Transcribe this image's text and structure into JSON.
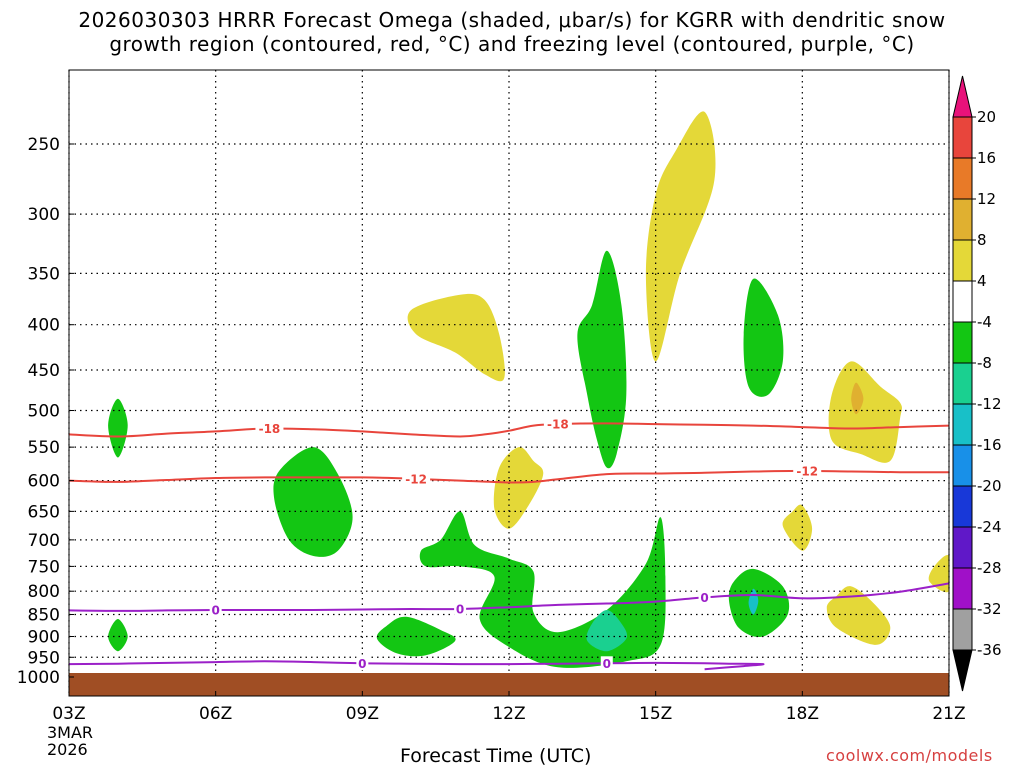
{
  "title_line1": "2026030303 HRRR Forecast Omega (shaded, μbar/s) for KGRR with dendritic snow",
  "title_line2": "growth region (contoured, red, °C) and freezing level (contoured, purple, °C)",
  "xaxis_title": "Forecast Time (UTC)",
  "credit": "coolwx.com/models",
  "date_label": [
    "3MAR",
    "2026"
  ],
  "chart_data": {
    "type": "contour",
    "x_ticks": [
      {
        "hour": 3,
        "label": "03Z"
      },
      {
        "hour": 6,
        "label": "06Z"
      },
      {
        "hour": 9,
        "label": "09Z"
      },
      {
        "hour": 12,
        "label": "12Z"
      },
      {
        "hour": 15,
        "label": "15Z"
      },
      {
        "hour": 18,
        "label": "18Z"
      },
      {
        "hour": 21,
        "label": "21Z"
      }
    ],
    "xlim": [
      3,
      21
    ],
    "ylim_hpa": [
      1040,
      200
    ],
    "y_ticks": [
      {
        "p": 250,
        "label": "250"
      },
      {
        "p": 300,
        "label": "300"
      },
      {
        "p": 350,
        "label": "350"
      },
      {
        "p": 400,
        "label": "400"
      },
      {
        "p": 450,
        "label": "450"
      },
      {
        "p": 500,
        "label": "500"
      },
      {
        "p": 550,
        "label": "550"
      },
      {
        "p": 600,
        "label": "600"
      },
      {
        "p": 650,
        "label": "650"
      },
      {
        "p": 700,
        "label": "700"
      },
      {
        "p": 750,
        "label": "750"
      },
      {
        "p": 800,
        "label": "800"
      },
      {
        "p": 850,
        "label": "850"
      },
      {
        "p": 900,
        "label": "900"
      },
      {
        "p": 950,
        "label": "950"
      },
      {
        "p": 1000,
        "label": "1000"
      }
    ],
    "colorbar": {
      "labels": [
        "20",
        "16",
        "12",
        "8",
        "4",
        "-4",
        "-8",
        "-12",
        "-16",
        "-20",
        "-24",
        "-28",
        "-32",
        "-36"
      ],
      "colors": [
        "#e8127a",
        "#e8453c",
        "#e87a28",
        "#e0b030",
        "#e4d838",
        "#ffffff",
        "#13c613",
        "#1ad090",
        "#18c0c8",
        "#1890e8",
        "#1838d8",
        "#6018c8",
        "#a010c8",
        "#a0a0a0",
        "#000000"
      ]
    },
    "contours": [
      {
        "name": "dendritic-top",
        "value": "-18",
        "color": "#e8453c",
        "points": [
          [
            3,
            532
          ],
          [
            4,
            535
          ],
          [
            5,
            531
          ],
          [
            6,
            528
          ],
          [
            7,
            524
          ],
          [
            8,
            525
          ],
          [
            9,
            528
          ],
          [
            10,
            532
          ],
          [
            11,
            535
          ],
          [
            11.5,
            532
          ],
          [
            12,
            527
          ],
          [
            12.5,
            520
          ],
          [
            13,
            518
          ],
          [
            14,
            517
          ],
          [
            15,
            518
          ],
          [
            16,
            519
          ],
          [
            17,
            520
          ],
          [
            18,
            522
          ],
          [
            19,
            524
          ],
          [
            20,
            522
          ],
          [
            21,
            520
          ]
        ],
        "labels": [
          {
            "hour": 7.1,
            "value": "-18"
          },
          {
            "hour": 13.0,
            "value": "-18"
          }
        ]
      },
      {
        "name": "dendritic-bottom",
        "value": "-12",
        "color": "#e8453c",
        "points": [
          [
            3,
            600
          ],
          [
            4,
            602
          ],
          [
            5,
            599
          ],
          [
            6,
            596
          ],
          [
            7,
            595
          ],
          [
            8,
            595
          ],
          [
            9,
            595
          ],
          [
            10,
            597
          ],
          [
            11,
            600
          ],
          [
            12,
            603
          ],
          [
            12.5,
            602
          ],
          [
            13,
            598
          ],
          [
            14,
            590
          ],
          [
            15,
            589
          ],
          [
            16,
            588
          ],
          [
            17,
            586
          ],
          [
            18,
            585
          ],
          [
            19,
            586
          ],
          [
            20,
            587
          ],
          [
            21,
            587
          ]
        ],
        "labels": [
          {
            "hour": 10.1,
            "value": "-12"
          },
          {
            "hour": 18.1,
            "value": "-12"
          }
        ]
      },
      {
        "name": "freezing-level-upper",
        "value": "0",
        "color": "#9b20c8",
        "points": [
          [
            3,
            841
          ],
          [
            4,
            842
          ],
          [
            5,
            841
          ],
          [
            6,
            840
          ],
          [
            7,
            840
          ],
          [
            8,
            840
          ],
          [
            9,
            839
          ],
          [
            10,
            838
          ],
          [
            11,
            838
          ],
          [
            12,
            834
          ],
          [
            13,
            829
          ],
          [
            14,
            826
          ],
          [
            15,
            822
          ],
          [
            16,
            813
          ],
          [
            17,
            808
          ],
          [
            18,
            815
          ],
          [
            19,
            811
          ],
          [
            20,
            801
          ],
          [
            21,
            784
          ]
        ],
        "labels": [
          {
            "hour": 6.0,
            "value": "0"
          },
          {
            "hour": 11.0,
            "value": "0"
          },
          {
            "hour": 16.0,
            "value": "0"
          }
        ]
      },
      {
        "name": "freezing-level-lower",
        "value": "0",
        "color": "#9b20c8",
        "points": [
          [
            3,
            967
          ],
          [
            4,
            966
          ],
          [
            5,
            964
          ],
          [
            6,
            962
          ],
          [
            7,
            960
          ],
          [
            8,
            962
          ],
          [
            9,
            965
          ],
          [
            10,
            966
          ],
          [
            11,
            967
          ],
          [
            12,
            967
          ],
          [
            13,
            966
          ],
          [
            14,
            965
          ],
          [
            15,
            964
          ],
          [
            16,
            965
          ],
          [
            16.5,
            966
          ],
          [
            17.2,
            967
          ],
          [
            16.8,
            972
          ],
          [
            16,
            980
          ]
        ],
        "labels": [
          {
            "hour": 9.0,
            "value": "0"
          },
          {
            "hour": 14.0,
            "value": "0"
          }
        ]
      }
    ],
    "omega_regions": [
      {
        "level": "-4 to -8",
        "color": "#13c613",
        "points": [
          [
            4.0,
            485
          ],
          [
            4.2,
            520
          ],
          [
            4.0,
            565
          ],
          [
            3.8,
            520
          ]
        ]
      },
      {
        "level": "-4 to -8",
        "color": "#13c613",
        "points": [
          [
            4.0,
            860
          ],
          [
            4.2,
            900
          ],
          [
            4.0,
            935
          ],
          [
            3.8,
            900
          ]
        ]
      },
      {
        "level": "-4 to -8",
        "color": "#13c613",
        "points": [
          [
            8.0,
            550
          ],
          [
            8.5,
            590
          ],
          [
            8.8,
            660
          ],
          [
            8.5,
            720
          ],
          [
            8.0,
            730
          ],
          [
            7.5,
            700
          ],
          [
            7.2,
            630
          ],
          [
            7.3,
            585
          ]
        ]
      },
      {
        "level": "-4 to -8",
        "color": "#13c613",
        "points": [
          [
            9.9,
            855
          ],
          [
            10.6,
            885
          ],
          [
            10.9,
            910
          ],
          [
            10.3,
            945
          ],
          [
            9.7,
            940
          ],
          [
            9.3,
            905
          ],
          [
            9.5,
            875
          ]
        ]
      },
      {
        "level": "-4 to -8",
        "color": "#13c613",
        "points": [
          [
            11.0,
            650
          ],
          [
            11.3,
            710
          ],
          [
            12.0,
            735
          ],
          [
            12.5,
            760
          ],
          [
            12.5,
            845
          ],
          [
            13.0,
            890
          ],
          [
            14.0,
            840
          ],
          [
            14.8,
            745
          ],
          [
            15.1,
            660
          ],
          [
            15.2,
            770
          ],
          [
            15.1,
            920
          ],
          [
            14.4,
            960
          ],
          [
            13.0,
            975
          ],
          [
            12.0,
            925
          ],
          [
            11.4,
            860
          ],
          [
            11.7,
            770
          ],
          [
            11.0,
            750
          ],
          [
            10.3,
            750
          ],
          [
            10.2,
            720
          ],
          [
            10.6,
            700
          ]
        ]
      },
      {
        "level": "-4 to -8",
        "color": "#13c613",
        "points": [
          [
            14.0,
            330
          ],
          [
            14.3,
            380
          ],
          [
            14.4,
            480
          ],
          [
            14.2,
            560
          ],
          [
            14.0,
            580
          ],
          [
            13.8,
            540
          ],
          [
            13.6,
            480
          ],
          [
            13.4,
            410
          ],
          [
            13.7,
            380
          ]
        ]
      },
      {
        "level": "-4 to -8",
        "color": "#13c613",
        "points": [
          [
            17.0,
            355
          ],
          [
            17.5,
            390
          ],
          [
            17.6,
            440
          ],
          [
            17.3,
            480
          ],
          [
            16.9,
            470
          ],
          [
            16.8,
            410
          ]
        ]
      },
      {
        "level": "-4 to -8",
        "color": "#13c613",
        "points": [
          [
            17.0,
            755
          ],
          [
            17.6,
            790
          ],
          [
            17.7,
            850
          ],
          [
            17.2,
            900
          ],
          [
            16.7,
            880
          ],
          [
            16.5,
            820
          ],
          [
            16.6,
            780
          ]
        ]
      },
      {
        "level": "-8 to -12",
        "color": "#1ad090",
        "points": [
          [
            14.0,
            840
          ],
          [
            14.3,
            870
          ],
          [
            14.4,
            905
          ],
          [
            14.0,
            935
          ],
          [
            13.6,
            910
          ],
          [
            13.7,
            870
          ]
        ]
      },
      {
        "level": "-12 to -16",
        "color": "#18c0c8",
        "points": [
          [
            17.0,
            795
          ],
          [
            17.1,
            820
          ],
          [
            17.0,
            850
          ],
          [
            16.9,
            825
          ]
        ]
      },
      {
        "level": "4 to 8",
        "color": "#e4d838",
        "points": [
          [
            11.0,
            370
          ],
          [
            11.5,
            375
          ],
          [
            11.8,
            410
          ],
          [
            11.9,
            460
          ],
          [
            11.5,
            455
          ],
          [
            10.9,
            430
          ],
          [
            10.1,
            410
          ],
          [
            10.0,
            385
          ]
        ]
      },
      {
        "level": "4 to 8",
        "color": "#e4d838",
        "points": [
          [
            12.5,
            570
          ],
          [
            12.7,
            590
          ],
          [
            12.4,
            640
          ],
          [
            12.0,
            680
          ],
          [
            11.7,
            645
          ],
          [
            11.8,
            580
          ],
          [
            12.2,
            550
          ]
        ]
      },
      {
        "level": "4 to 8",
        "color": "#e4d838",
        "points": [
          [
            16.0,
            230
          ],
          [
            16.2,
            275
          ],
          [
            15.5,
            350
          ],
          [
            15.0,
            440
          ],
          [
            14.8,
            350
          ],
          [
            15.0,
            285
          ],
          [
            15.4,
            255
          ]
        ]
      },
      {
        "level": "4 to 8",
        "color": "#e4d838",
        "points": [
          [
            18.0,
            640
          ],
          [
            18.2,
            680
          ],
          [
            18.0,
            720
          ],
          [
            17.6,
            675
          ],
          [
            17.8,
            650
          ]
        ]
      },
      {
        "level": "4 to 8",
        "color": "#e4d838",
        "points": [
          [
            19.0,
            440
          ],
          [
            19.6,
            470
          ],
          [
            20.0,
            490
          ],
          [
            20.0,
            510
          ],
          [
            19.8,
            570
          ],
          [
            19.2,
            560
          ],
          [
            18.6,
            540
          ],
          [
            18.6,
            480
          ]
        ]
      },
      {
        "level": "4 to 8",
        "color": "#e4d838",
        "points": [
          [
            19.0,
            790
          ],
          [
            19.5,
            830
          ],
          [
            19.8,
            880
          ],
          [
            19.5,
            920
          ],
          [
            18.7,
            880
          ],
          [
            18.5,
            835
          ],
          [
            18.7,
            810
          ]
        ]
      },
      {
        "level": "4 to 8",
        "color": "#e4d838",
        "points": [
          [
            21.0,
            730
          ],
          [
            21.0,
            800
          ],
          [
            20.6,
            780
          ],
          [
            20.7,
            750
          ]
        ]
      },
      {
        "level": "8 to 12",
        "color": "#e0b030",
        "points": [
          [
            19.1,
            465
          ],
          [
            19.25,
            485
          ],
          [
            19.1,
            505
          ],
          [
            19.0,
            485
          ]
        ]
      }
    ]
  }
}
